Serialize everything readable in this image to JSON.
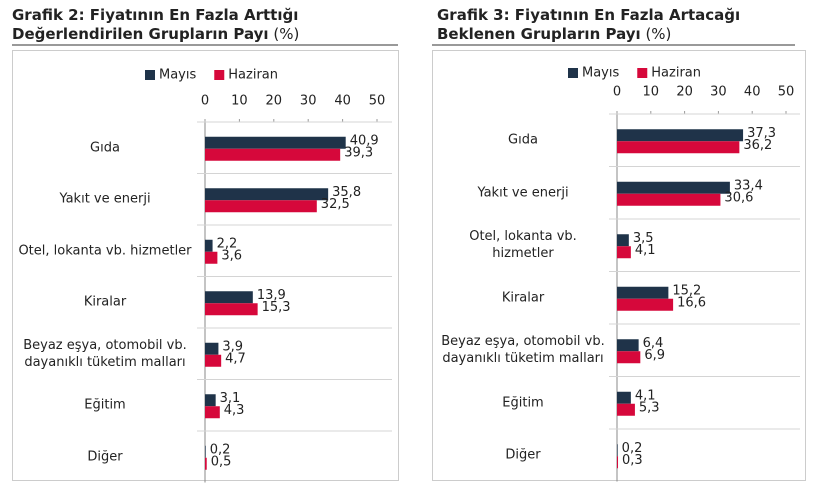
{
  "chart_data": [
    {
      "type": "bar",
      "orientation": "horizontal",
      "title": "Grafik 2: Fiyatının En Fazla Arttığı Değerlendirilen Grupların Payı",
      "subtitle": "(%)",
      "categories": [
        "Gıda",
        "Yakıt ve enerji",
        "Otel, lokanta vb. hizmetler",
        "Kiralar",
        "Beyaz eşya, otomobil vb. dayanıklı tüketim malları",
        "Eğitim",
        "Diğer"
      ],
      "series": [
        {
          "name": "Mayıs",
          "color": "#1f3349",
          "values": [
            40.9,
            35.8,
            2.2,
            13.9,
            3.9,
            3.1,
            0.2
          ],
          "value_labels": [
            "40,9",
            "35,8",
            "2,2",
            "13,9",
            "3,9",
            "3,1",
            "0,2"
          ]
        },
        {
          "name": "Haziran",
          "color": "#d6083b",
          "values": [
            39.3,
            32.5,
            3.6,
            15.3,
            4.7,
            4.3,
            0.5
          ],
          "value_labels": [
            "39,3",
            "32,5",
            "3,6",
            "15,3",
            "4,7",
            "4,3",
            "0,5"
          ]
        }
      ],
      "xlim": [
        0,
        50
      ],
      "xticks": [
        0,
        10,
        20,
        30,
        40,
        50
      ],
      "legend": "top"
    },
    {
      "type": "bar",
      "orientation": "horizontal",
      "title": "Grafik 3: Fiyatının En Fazla Artacağı Beklenen Grupların Payı",
      "subtitle": "(%)",
      "categories": [
        "Gıda",
        "Yakıt ve enerji",
        "Otel, lokanta vb. hizmetler",
        "Kiralar",
        "Beyaz eşya, otomobil vb. dayanıklı tüketim malları",
        "Eğitim",
        "Diğer"
      ],
      "series": [
        {
          "name": "Mayıs",
          "color": "#1f3349",
          "values": [
            37.3,
            33.4,
            3.5,
            15.2,
            6.4,
            4.1,
            0.2
          ],
          "value_labels": [
            "37,3",
            "33,4",
            "3,5",
            "15,2",
            "6,4",
            "4,1",
            "0,2"
          ]
        },
        {
          "name": "Haziran",
          "color": "#d6083b",
          "values": [
            36.2,
            30.6,
            4.1,
            16.6,
            6.9,
            5.3,
            0.3
          ],
          "value_labels": [
            "36,2",
            "30,6",
            "4,1",
            "16,6",
            "6,9",
            "5,3",
            "0,3"
          ]
        }
      ],
      "xlim": [
        0,
        50
      ],
      "xticks": [
        0,
        10,
        20,
        30,
        40,
        50
      ],
      "legend": "top"
    }
  ]
}
